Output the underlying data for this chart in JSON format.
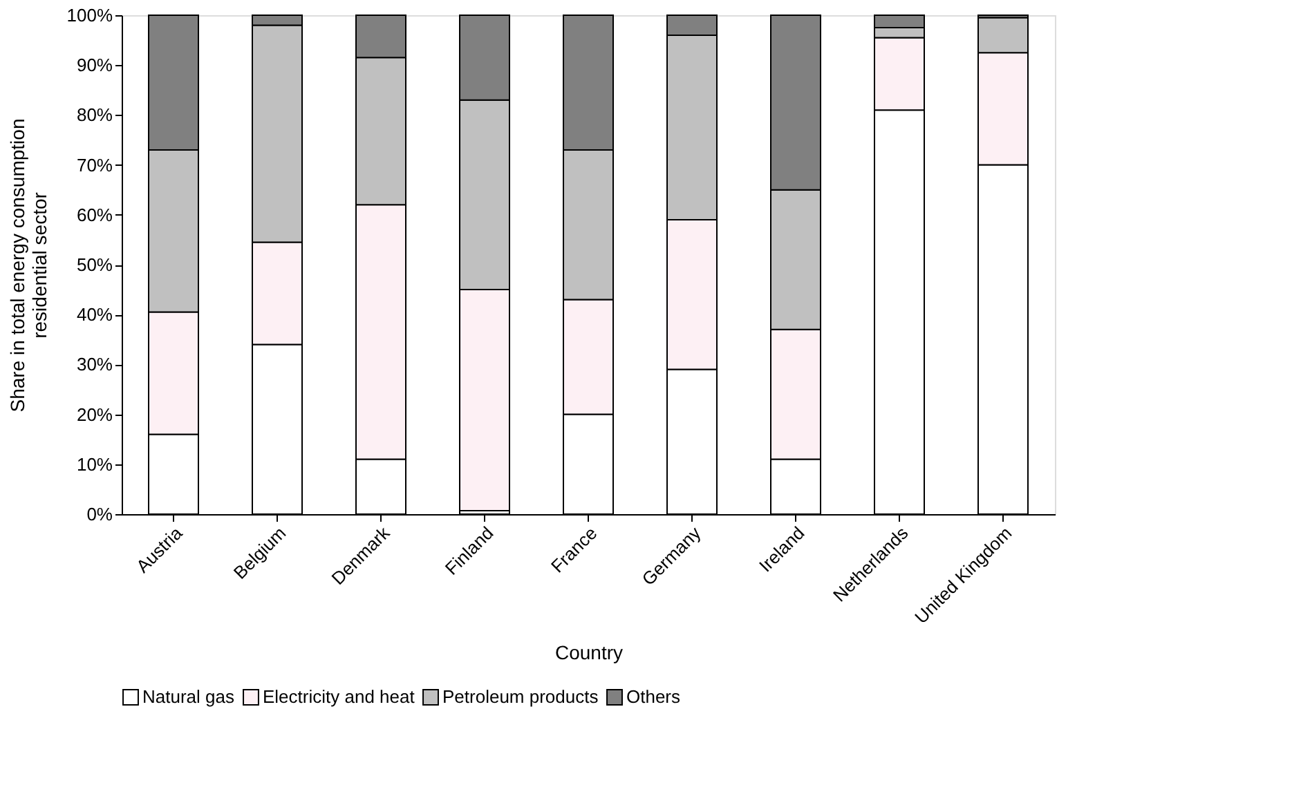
{
  "chart_data": {
    "type": "bar",
    "stacked": true,
    "xlabel": "Country",
    "ylabel": "Share in total energy consumption\nresidential sector",
    "categories": [
      "Austria",
      "Belgium",
      "Denmark",
      "Finland",
      "France",
      "Germany",
      "Ireland",
      "Netherlands",
      "United Kingdom"
    ],
    "series": [
      {
        "name": "Natural gas",
        "color": "#ffffff",
        "values": [
          16,
          34,
          11,
          0.7,
          20,
          29,
          11,
          81,
          70
        ]
      },
      {
        "name": "Electricity and heat",
        "color": "#fdf0f4",
        "values": [
          24.5,
          20.5,
          51,
          44.3,
          23,
          30,
          26,
          14.5,
          22.5
        ]
      },
      {
        "name": "Petroleum products",
        "color": "#c0c0c0",
        "values": [
          32.5,
          43.5,
          29.5,
          38,
          30,
          37,
          28,
          2,
          7
        ]
      },
      {
        "name": "Others",
        "color": "#808080",
        "values": [
          27,
          2,
          8.5,
          17,
          27,
          4,
          35,
          2.5,
          0.5
        ]
      }
    ],
    "ylim": [
      0,
      100
    ],
    "yticks": [
      {
        "value": 0,
        "label": "0%"
      },
      {
        "value": 10,
        "label": "10%"
      },
      {
        "value": 20,
        "label": "20%"
      },
      {
        "value": 30,
        "label": "30%"
      },
      {
        "value": 40,
        "label": "40%"
      },
      {
        "value": 50,
        "label": "50%"
      },
      {
        "value": 60,
        "label": "60%"
      },
      {
        "value": 70,
        "label": "70%"
      },
      {
        "value": 80,
        "label": "80%"
      },
      {
        "value": 90,
        "label": "90%"
      },
      {
        "value": 100,
        "label": "100%"
      }
    ],
    "grid": false,
    "legend": "bottom"
  }
}
